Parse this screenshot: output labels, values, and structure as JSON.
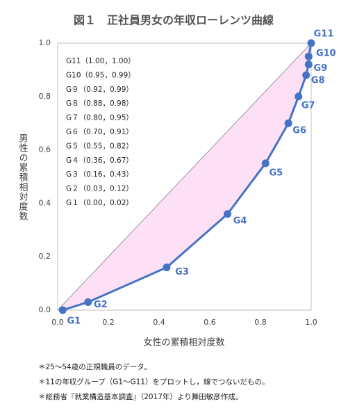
{
  "chart_data": {
    "type": "line",
    "title": "図１　正社員男女の年収ローレンツ曲線",
    "xlabel": "女性の累積相対度数",
    "ylabel": "男性の累積相対度数",
    "labels": [
      "G1",
      "G2",
      "G3",
      "G4",
      "G5",
      "G6",
      "G7",
      "G8",
      "G9",
      "G10",
      "G11"
    ],
    "x": [
      0.02,
      0.12,
      0.43,
      0.67,
      0.82,
      0.91,
      0.95,
      0.98,
      0.99,
      0.99,
      1.0
    ],
    "values": [
      0.0,
      0.03,
      0.16,
      0.36,
      0.55,
      0.7,
      0.8,
      0.88,
      0.92,
      0.95,
      1.0
    ],
    "color": "#4472c4",
    "fill_color": "#fde0f6",
    "xlim": [
      0,
      1
    ],
    "ylim": [
      0,
      1
    ],
    "xticks": [
      {
        "value": 0,
        "label": "0.0"
      },
      0.2,
      0.4,
      0.6,
      0.8,
      {
        "value": 1,
        "label": "1.0"
      }
    ],
    "yticks": [
      {
        "value": 0,
        "label": "0.0"
      },
      0.2,
      0.4,
      0.6,
      0.8,
      {
        "value": 1,
        "label": "1.0"
      }
    ],
    "annotations": [
      "G11（1.00，1.00）",
      "G10（0.95，0.99）",
      "G９（0.92，0.99）",
      "G８（0.88，0.98）",
      "G７（0.80，0.95）",
      "G６（0.70，0.91）",
      "G５（0.55，0.82）",
      "G４（0.36，0.67）",
      "G３（0.16，0.43）",
      "G２（0.03，0.12）",
      "G１（0.00，0.02）"
    ],
    "notes": [
      "＊25～54歳の正規職員のデータ。",
      "＊11の年収グループ（G1～G11）をプロットし，線でつないだもの。",
      "＊総務省『就業構造基本調査』（2017年）より舞田敏彦作成。"
    ]
  }
}
